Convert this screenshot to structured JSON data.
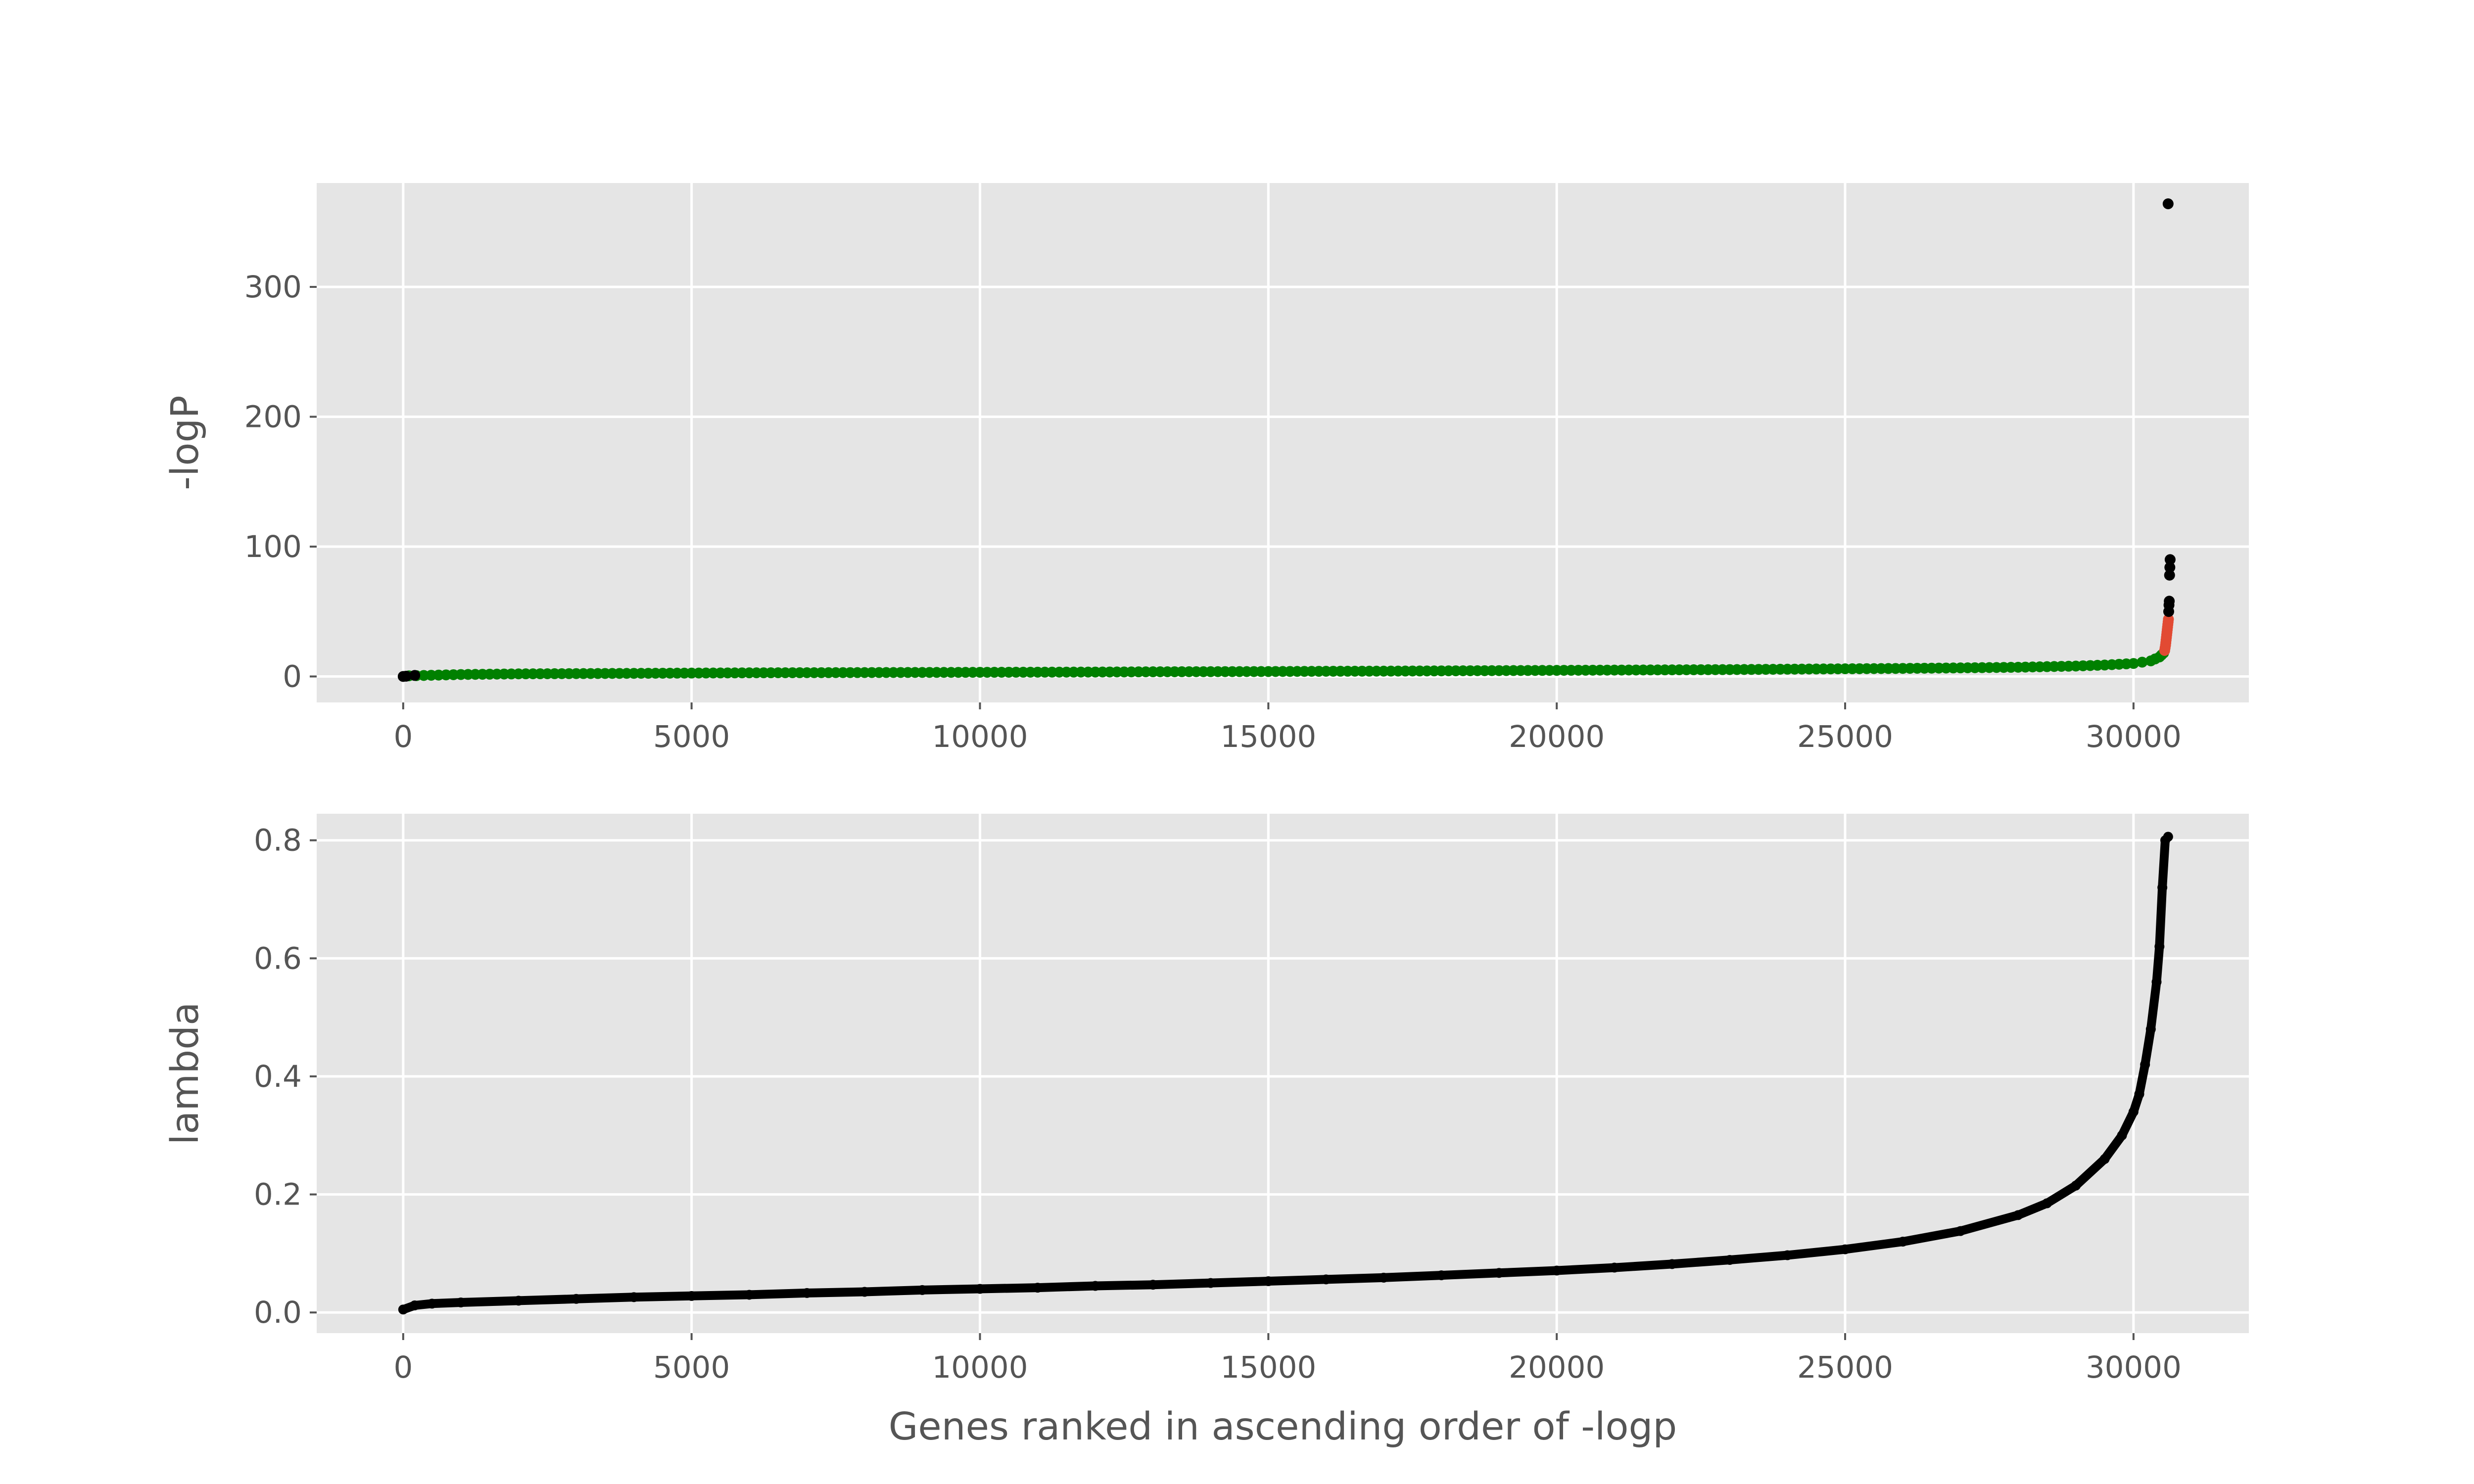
{
  "chart_data": [
    {
      "id": "logp",
      "type": "scatter",
      "title": "",
      "xlabel": "",
      "ylabel": "-logP",
      "xlim": [
        -1500,
        32000
      ],
      "ylim": [
        -20,
        380
      ],
      "xticks": [
        0,
        5000,
        10000,
        15000,
        20000,
        25000,
        30000
      ],
      "yticks": [
        0,
        100,
        200,
        300
      ],
      "grid": true,
      "background": "#e5e5e5",
      "series": [
        {
          "color": "#008000",
          "marker_color_note": "green points (bulk)",
          "points": [
            [
              100,
              0.5
            ],
            [
              1000,
              1.5
            ],
            [
              2000,
              2.0
            ],
            [
              3000,
              2.2
            ],
            [
              4000,
              2.4
            ],
            [
              5000,
              2.6
            ],
            [
              6000,
              2.8
            ],
            [
              7000,
              2.9
            ],
            [
              8000,
              3.0
            ],
            [
              9000,
              3.1
            ],
            [
              10000,
              3.2
            ],
            [
              11000,
              3.3
            ],
            [
              12000,
              3.4
            ],
            [
              13000,
              3.6
            ],
            [
              14000,
              3.7
            ],
            [
              15000,
              3.8
            ],
            [
              16000,
              4.0
            ],
            [
              17000,
              4.1
            ],
            [
              18000,
              4.3
            ],
            [
              19000,
              4.5
            ],
            [
              20000,
              4.7
            ],
            [
              21000,
              4.9
            ],
            [
              22000,
              5.1
            ],
            [
              23000,
              5.3
            ],
            [
              24000,
              5.6
            ],
            [
              25000,
              5.9
            ],
            [
              26000,
              6.2
            ],
            [
              27000,
              6.6
            ],
            [
              28000,
              7.1
            ],
            [
              29000,
              8.0
            ],
            [
              29500,
              8.8
            ],
            [
              30000,
              10.0
            ],
            [
              30300,
              12.0
            ],
            [
              30450,
              15.0
            ],
            [
              30520,
              18.0
            ]
          ]
        },
        {
          "color": "#e24a33",
          "marker_color_note": "red points (top tail)",
          "points": [
            [
              30540,
              20
            ],
            [
              30555,
              24
            ],
            [
              30565,
              28
            ],
            [
              30575,
              32
            ],
            [
              30585,
              36
            ],
            [
              30595,
              40
            ],
            [
              30605,
              44
            ]
          ]
        },
        {
          "color": "#000000",
          "marker_color_note": "black points",
          "points": [
            [
              0,
              0
            ],
            [
              50,
              0.2
            ],
            [
              200,
              0.8
            ],
            [
              30610,
              50
            ],
            [
              30615,
              55
            ],
            [
              30620,
              58
            ],
            [
              30625,
              78
            ],
            [
              30630,
              84
            ],
            [
              30635,
              90
            ],
            [
              30600,
              364
            ]
          ]
        }
      ]
    },
    {
      "id": "lambda",
      "type": "line",
      "title": "",
      "xlabel": "Genes ranked in ascending order of -logp",
      "ylabel": "lambda",
      "xlim": [
        -1500,
        32000
      ],
      "ylim": [
        -0.035,
        0.845
      ],
      "xticks": [
        0,
        5000,
        10000,
        15000,
        20000,
        25000,
        30000
      ],
      "yticks": [
        0.0,
        0.2,
        0.4,
        0.6,
        0.8
      ],
      "ytick_labels": [
        "0.0",
        "0.2",
        "0.4",
        "0.6",
        "0.8"
      ],
      "grid": true,
      "background": "#e5e5e5",
      "series": [
        {
          "color": "#000000",
          "x": [
            0,
            200,
            500,
            1000,
            2000,
            3000,
            4000,
            5000,
            6000,
            7000,
            8000,
            9000,
            10000,
            11000,
            12000,
            13000,
            14000,
            15000,
            16000,
            17000,
            18000,
            19000,
            20000,
            21000,
            22000,
            23000,
            24000,
            25000,
            26000,
            27000,
            28000,
            28500,
            29000,
            29500,
            29800,
            30000,
            30100,
            30200,
            30300,
            30400,
            30450,
            30500,
            30550,
            30600
          ],
          "y": [
            0.005,
            0.012,
            0.015,
            0.017,
            0.02,
            0.023,
            0.026,
            0.028,
            0.03,
            0.033,
            0.035,
            0.038,
            0.04,
            0.042,
            0.045,
            0.047,
            0.05,
            0.053,
            0.056,
            0.059,
            0.063,
            0.067,
            0.071,
            0.076,
            0.082,
            0.089,
            0.097,
            0.107,
            0.12,
            0.138,
            0.165,
            0.185,
            0.215,
            0.26,
            0.3,
            0.34,
            0.37,
            0.42,
            0.48,
            0.56,
            0.62,
            0.72,
            0.8,
            0.806
          ]
        }
      ]
    }
  ]
}
